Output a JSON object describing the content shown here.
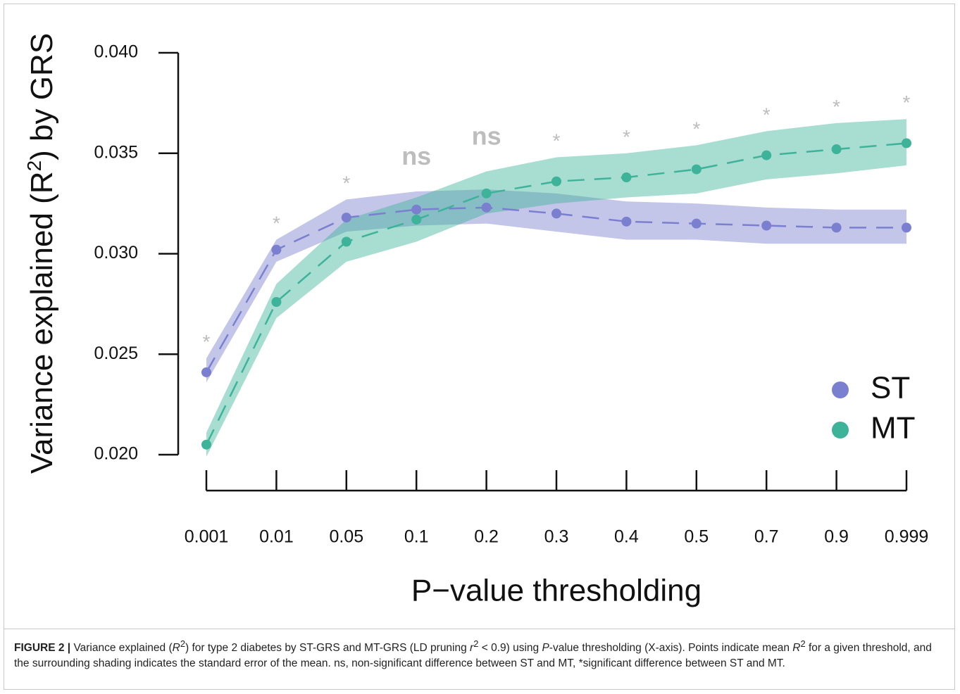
{
  "chart_data": {
    "type": "line",
    "y_label_parts": [
      "Variance explained (R",
      "2",
      ") by GRS"
    ],
    "x_label": "P−value thresholding",
    "categories": [
      "0.001",
      "0.01",
      "0.05",
      "0.1",
      "0.2",
      "0.3",
      "0.4",
      "0.5",
      "0.7",
      "0.9",
      "0.999"
    ],
    "ylim": [
      0.02,
      0.04
    ],
    "yticks": [
      {
        "value": 0.04,
        "label": "0.040"
      },
      0.035,
      {
        "value": 0.03,
        "label": "0.030"
      },
      0.025,
      {
        "value": 0.02,
        "label": "0.020"
      }
    ],
    "series": [
      {
        "name": "ST",
        "color": "#7b7fcf",
        "values": [
          0.0241,
          0.0302,
          0.0318,
          0.0322,
          0.0323,
          0.032,
          0.0316,
          0.0315,
          0.0314,
          0.0313,
          0.0313
        ],
        "lower": [
          0.0236,
          0.0296,
          0.0311,
          0.0314,
          0.0315,
          0.0311,
          0.0307,
          0.0307,
          0.0305,
          0.0305,
          0.0305
        ],
        "upper": [
          0.0248,
          0.0307,
          0.0327,
          0.0331,
          0.0332,
          0.033,
          0.0326,
          0.0325,
          0.0323,
          0.0322,
          0.0322
        ]
      },
      {
        "name": "MT",
        "color": "#3db39a",
        "values": [
          0.0205,
          0.0276,
          0.0306,
          0.0317,
          0.033,
          0.0336,
          0.0338,
          0.0342,
          0.0349,
          0.0352,
          0.0355
        ],
        "lower": [
          0.0199,
          0.0268,
          0.0296,
          0.0306,
          0.032,
          0.0325,
          0.0328,
          0.033,
          0.0337,
          0.034,
          0.0344
        ],
        "upper": [
          0.0211,
          0.0285,
          0.0317,
          0.0328,
          0.0341,
          0.0348,
          0.035,
          0.0354,
          0.0361,
          0.0365,
          0.0367
        ]
      }
    ],
    "annotations": [
      "*",
      "*",
      "*",
      "ns",
      "ns",
      "*",
      "*",
      "*",
      "*",
      "*",
      "*"
    ],
    "legend": "bottom-right"
  },
  "caption": {
    "label": "FIGURE 2 |",
    "parts": [
      "Variance explained (",
      "R",
      "2",
      ") for type 2 diabetes by ST-GRS and MT-GRS (LD pruning ",
      "r",
      "2",
      " < 0.9) using ",
      "P",
      "-value thresholding (X-axis). Points indicate mean ",
      "R",
      "2",
      " for a given threshold, and the surrounding shading indicates the standard error of the mean. ns, non-significant difference between ST and MT, *significant difference between ST and MT."
    ]
  }
}
